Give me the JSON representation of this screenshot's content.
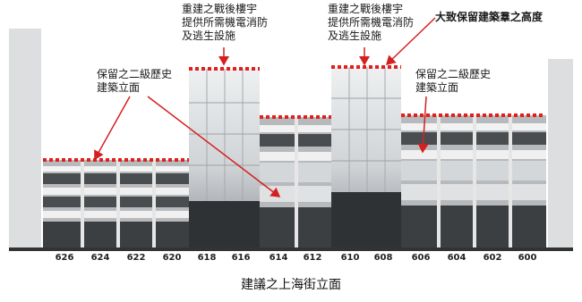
{
  "labels": {
    "top_left_1": "重建之戰後樓宇",
    "top_left_2": "提供所需機電消防",
    "top_left_3": "及逃生設施",
    "top_right_1": "重建之戰後樓宇",
    "top_right_2": "提供所需機電消防",
    "top_right_3": "及逃生設施",
    "height_note": "大致保留建築羣之高度",
    "facade_left_1": "保留之二級歷史",
    "facade_left_2": "建築立面",
    "facade_right_1": "保留之二級歷史",
    "facade_right_2": "建築立面"
  },
  "street_numbers": [
    "626",
    "624",
    "622",
    "620",
    "618",
    "616",
    "614",
    "612",
    "610",
    "608",
    "606",
    "604",
    "602",
    "600"
  ],
  "caption": "建議之上海街立面",
  "colors": {
    "height_line": "#e0201c",
    "arrow": "#d42020",
    "ground": "#333333"
  }
}
